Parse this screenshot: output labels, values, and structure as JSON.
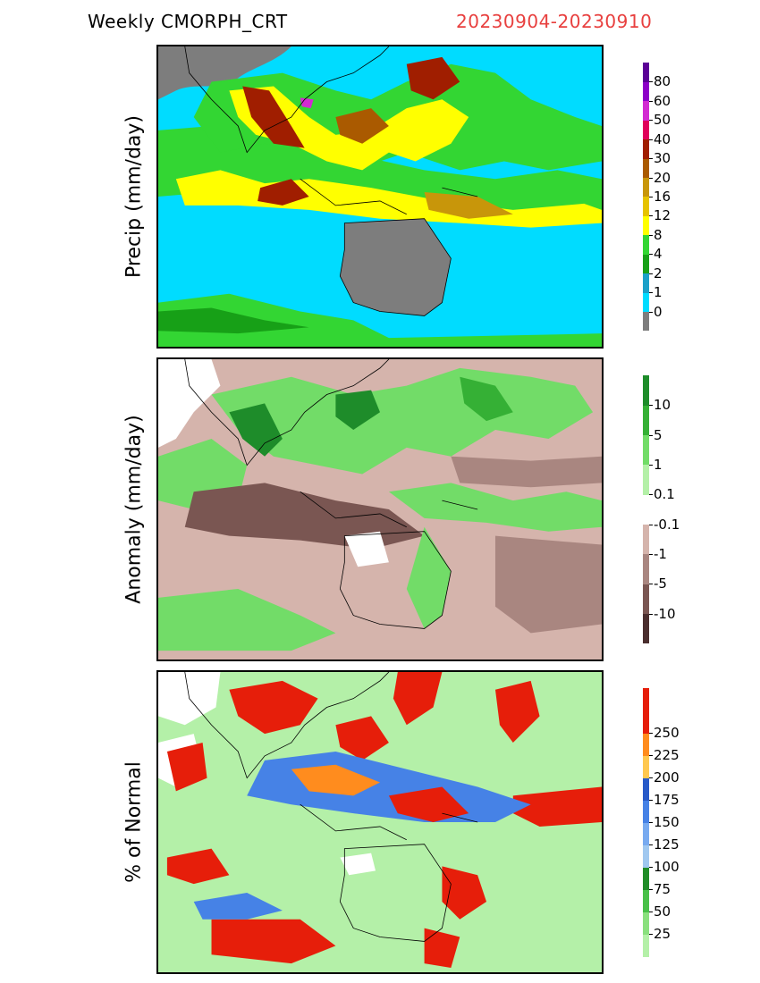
{
  "header": {
    "title": "Weekly CMORPH_CRT",
    "dates": "20230904-20230910"
  },
  "panels": [
    {
      "name": "precip",
      "ylabel": "Precip (mm/day)",
      "colorbar": [
        {
          "label": "",
          "color": "#7d7d7d"
        },
        {
          "label": "0",
          "color": "#00dcff"
        },
        {
          "label": "1",
          "color": "#1aa0c8"
        },
        {
          "label": "2",
          "color": "#17a017"
        },
        {
          "label": "4",
          "color": "#33d633"
        },
        {
          "label": "8",
          "color": "#ffff00"
        },
        {
          "label": "12",
          "color": "#e6c300"
        },
        {
          "label": "16",
          "color": "#c8960a"
        },
        {
          "label": "20",
          "color": "#aa5a00"
        },
        {
          "label": "30",
          "color": "#a01e00"
        },
        {
          "label": "40",
          "color": "#e0005a"
        },
        {
          "label": "50",
          "color": "#d22bd2"
        },
        {
          "label": "60",
          "color": "#8c00c8"
        },
        {
          "label": "80",
          "color": "#5a0096"
        }
      ]
    },
    {
      "name": "anomaly",
      "ylabel": "Anomaly (mm/day)",
      "colorbar": [
        {
          "label": "",
          "color": "#4a2e2e"
        },
        {
          "label": "-10",
          "color": "#7a5652"
        },
        {
          "label": "-5",
          "color": "#a98680"
        },
        {
          "label": "-1",
          "color": "#d5b4ac"
        },
        {
          "label": "-0.1",
          "color": "#ffffff"
        },
        {
          "label": "0.1",
          "color": "#b4f0a8"
        },
        {
          "label": "1",
          "color": "#72dc68"
        },
        {
          "label": "5",
          "color": "#35b035"
        },
        {
          "label": "10",
          "color": "#1e8c2a"
        }
      ]
    },
    {
      "name": "percent",
      "ylabel": "% of Normal",
      "colorbar": [
        {
          "label": "",
          "color": "#b4f0a8"
        },
        {
          "label": "25",
          "color": "#8ae07e"
        },
        {
          "label": "50",
          "color": "#48c048"
        },
        {
          "label": "75",
          "color": "#208c28"
        },
        {
          "label": "100",
          "color": "#a0c8f0"
        },
        {
          "label": "125",
          "color": "#78aaf0"
        },
        {
          "label": "150",
          "color": "#4682e6"
        },
        {
          "label": "175",
          "color": "#285ac8"
        },
        {
          "label": "200",
          "color": "#ffc850"
        },
        {
          "label": "225",
          "color": "#ff8c1e"
        },
        {
          "label": "250",
          "color": "#e61e0a"
        },
        {
          "label": "",
          "color": "#e61e0a"
        }
      ]
    }
  ]
}
